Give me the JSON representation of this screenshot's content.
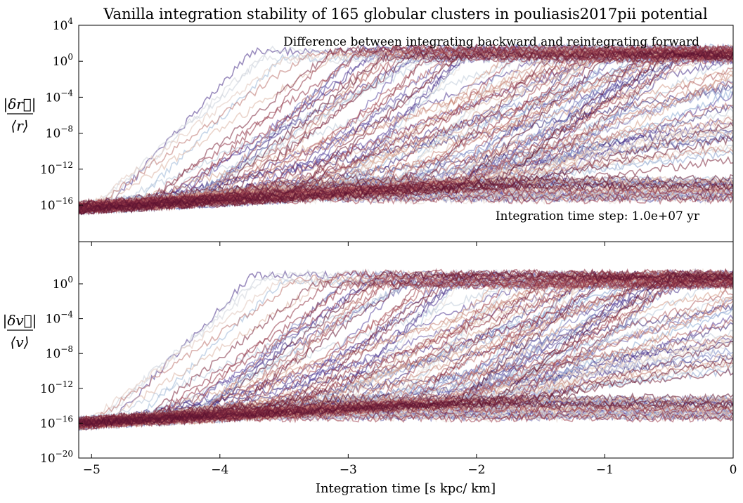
{
  "chart_data": {
    "type": "line",
    "title": "Vanilla integration stability of 165 globular clusters in pouliasis2017pii potential",
    "n_series": 165,
    "xlabel": "Integration time [s kpc/ km]",
    "xlim": [
      -5.1,
      0
    ],
    "x_ticks": [
      -5,
      -4,
      -3,
      -2,
      -1,
      0
    ],
    "x_tick_labels": [
      "−5",
      "−4",
      "−3",
      "−2",
      "−1",
      "0"
    ],
    "yscale": "log",
    "grid": false,
    "colormap": [
      "#2b1a6b",
      "#5a3f9c",
      "#8fb0d6",
      "#e9e2dc",
      "#d39a86",
      "#9c3a4a",
      "#5a1130"
    ],
    "panels": [
      {
        "id": "position",
        "ylabel_num": "|δr⃗|",
        "ylabel_den": "⟨r⟩",
        "ylim_exp": [
          -20,
          4
        ],
        "y_ticks_exp": [
          4,
          0,
          -4,
          -8,
          -12,
          -16
        ],
        "annotations": {
          "top": "Difference between integrating backward and reintegrating forward",
          "bottom": "Integration time step: 1.0e+07 yr"
        },
        "typical_floor_exp": -16.3,
        "typical_ceiling_exp": 0.8,
        "growth_onset_x": [
          -5.1,
          -1.5
        ],
        "values_summary": "Each cluster's relative position error starts near 1e-16 at x≈-5.1 and grows toward ~1e0 (saturating) as integration time approaches 0; a subset stay near 1e-15 to 1e-14."
      },
      {
        "id": "velocity",
        "ylabel_num": "|δv⃗|",
        "ylabel_den": "⟨v⟩",
        "ylim_exp": [
          -20,
          1
        ],
        "y_ticks_exp": [
          0,
          -4,
          -8,
          -12,
          -16,
          -20
        ],
        "typical_floor_exp": -16.0,
        "typical_ceiling_exp": 0.5,
        "growth_onset_x": [
          -5.1,
          -1.5
        ],
        "values_summary": "Relative velocity error follows the same pattern: starts near 1e-16, grows roughly exponentially, and saturates near 1e0 by x≈0."
      }
    ]
  }
}
